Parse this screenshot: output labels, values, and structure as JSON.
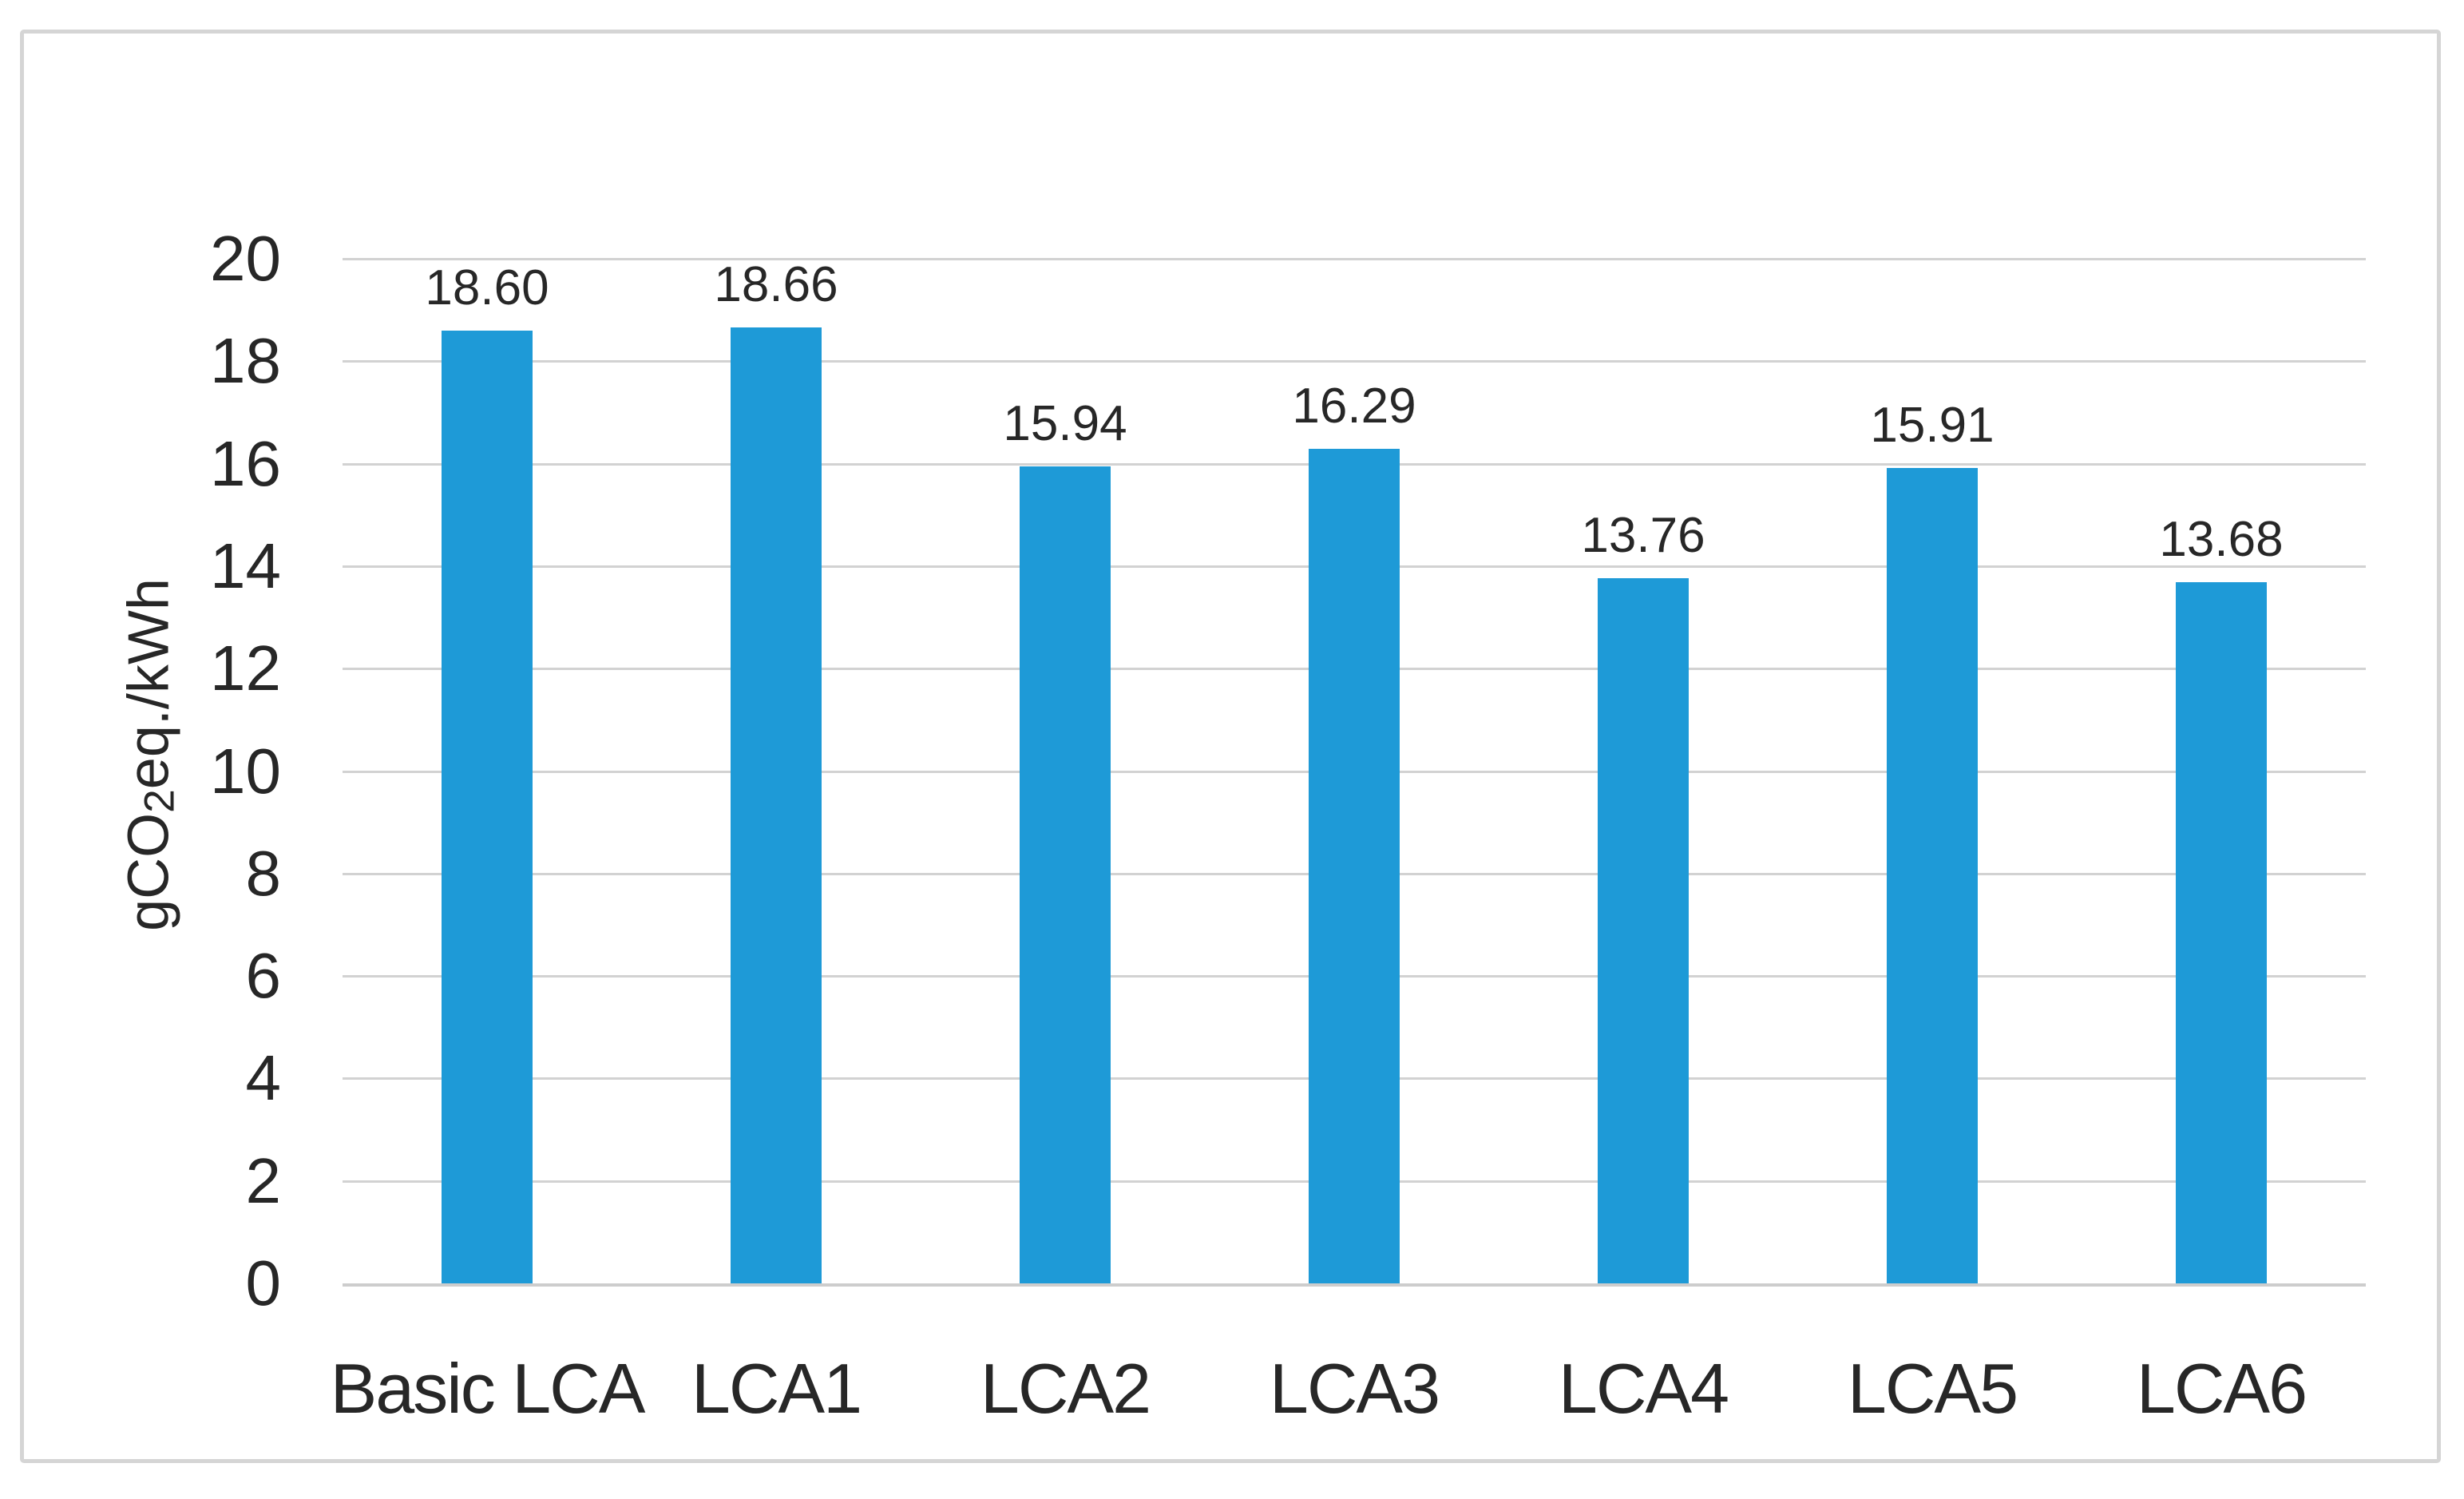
{
  "chart_data": {
    "type": "bar",
    "title": "",
    "categories": [
      "Basic LCA",
      "LCA1",
      "LCA2",
      "LCA3",
      "LCA4",
      "LCA5",
      "LCA6"
    ],
    "values": [
      18.6,
      18.66,
      15.94,
      16.29,
      13.76,
      15.91,
      13.68
    ],
    "data_labels": [
      "18.60",
      "18.66",
      "15.94",
      "16.29",
      "13.76",
      "15.91",
      "13.68"
    ],
    "xlabel": "",
    "ylabel": "gCO2eq./kWh",
    "ylabel_parts": {
      "pre": "gCO",
      "sub": "2",
      "post": "eq./kWh"
    },
    "ylim": [
      0,
      20
    ],
    "yticks": [
      0,
      2,
      4,
      6,
      8,
      10,
      12,
      14,
      16,
      18,
      20
    ],
    "grid": "horizontal",
    "legend": "none",
    "colors": {
      "bar": "#1e9ad7",
      "gridline": "#d2d2d2",
      "axis_line": "#cdcdcd",
      "frame_border": "#d5d5d5",
      "text": "#272727",
      "background": "#ffffff"
    }
  }
}
